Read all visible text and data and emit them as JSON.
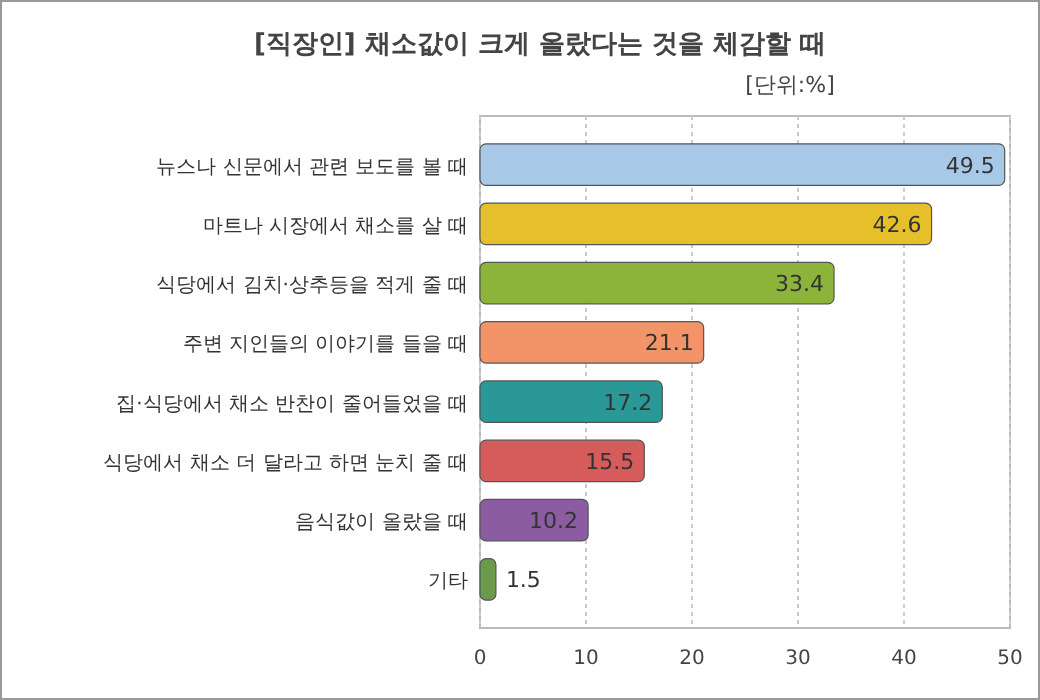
{
  "chart_data": {
    "type": "bar",
    "orientation": "horizontal",
    "title": "[직장인] 채소값이 크게 올랐다는 것을 체감할 때",
    "subtitle": "[단위:%]",
    "categories": [
      "뉴스나 신문에서 관련 보도를 볼 때",
      "마트나 시장에서 채소를 살 때",
      "식당에서 김치·상추등을 적게 줄 때",
      "주변 지인들의 이야기를 들을 때",
      "집·식당에서 채소 반찬이 줄어들었을 때",
      "식당에서 채소 더 달라고 하면 눈치 줄 때",
      "음식값이 올랐을 때",
      "기타"
    ],
    "values": [
      49.5,
      42.6,
      33.4,
      21.1,
      17.2,
      15.5,
      10.2,
      1.5
    ],
    "colors": [
      "#a8c8e8",
      "#e6c02a",
      "#8db43a",
      "#f29468",
      "#2a9896",
      "#d65c5c",
      "#8c5ca2",
      "#6a9a4a"
    ],
    "data_labels": true,
    "xlim": [
      0,
      50
    ],
    "xticks": [
      0,
      10,
      20,
      30,
      40,
      50
    ],
    "grid": "x"
  }
}
